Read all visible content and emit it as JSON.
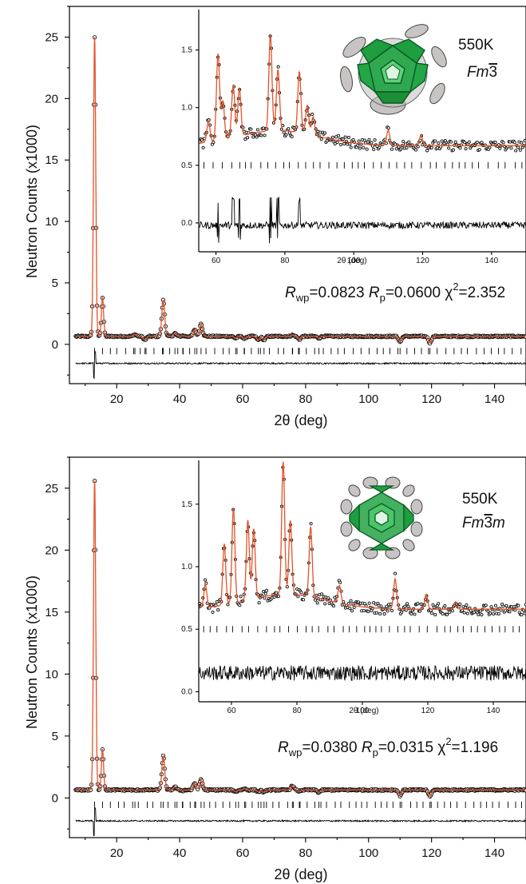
{
  "chart_data": [
    {
      "type": "line",
      "panel": "top",
      "xlabel": "2θ (deg)",
      "ylabel": "Neutron Counts (x1000)",
      "xlim": [
        5,
        150
      ],
      "ylim": [
        -3.2,
        27.5
      ],
      "xticks": [
        20,
        40,
        60,
        80,
        100,
        120,
        140
      ],
      "yticks": [
        0,
        5,
        10,
        15,
        20,
        25
      ],
      "stats": {
        "Rwp": "0.0823",
        "Rp": "0.0600",
        "chi2": "2.352"
      },
      "stats_labels": {
        "rwp_main": "R",
        "rwp_sub": "wp",
        "rwp_val": "=0.0823 ",
        "rp_main": "R",
        "rp_sub": "p",
        "rp_val": "=0.0600 ",
        "chi": "χ",
        "chi_sup": "2",
        "chi_val": "=2.352"
      },
      "peaks": [
        {
          "x": 13.0,
          "y": 25.0
        },
        {
          "x": 15.5,
          "y": 3.8
        },
        {
          "x": 25.8,
          "y": 0.8
        },
        {
          "x": 29.0,
          "y": 0.35
        },
        {
          "x": 34.8,
          "y": 3.6
        },
        {
          "x": 38.5,
          "y": 0.9
        },
        {
          "x": 41.0,
          "y": 0.7
        },
        {
          "x": 44.8,
          "y": 1.2
        },
        {
          "x": 46.8,
          "y": 1.7
        },
        {
          "x": 57.8,
          "y": 0.5
        },
        {
          "x": 60.6,
          "y": 0.45
        },
        {
          "x": 65.0,
          "y": 0.35
        },
        {
          "x": 66.8,
          "y": 0.35
        },
        {
          "x": 75.8,
          "y": 0.75
        },
        {
          "x": 78.0,
          "y": 0.4
        },
        {
          "x": 84.2,
          "y": 0.5
        },
        {
          "x": 110.0,
          "y": 0.2
        },
        {
          "x": 119.5,
          "y": 0.12
        }
      ],
      "background": 0.65,
      "bragg_y": -0.55,
      "diff_y": -1.55,
      "inset": {
        "temperature": "550K",
        "space_group": "Fm3",
        "xlabel": "2θ (deg)",
        "xlim": [
          55,
          150
        ],
        "ylim": [
          -0.25,
          1.85
        ],
        "xticks": [
          60,
          80,
          100,
          120,
          140
        ],
        "yticks": [
          0.0,
          0.5,
          1.0,
          1.5
        ],
        "ytick_labels": [
          "0.0",
          "0.5",
          "1.0",
          "1.5"
        ],
        "background_hump": {
          "center": 78,
          "height": 0.13,
          "width": 12
        },
        "background_base": 0.67,
        "peaks": [
          {
            "x": 57.8,
            "y": 0.85
          },
          {
            "x": 60.6,
            "y": 1.42
          },
          {
            "x": 62.0,
            "y": 1.0
          },
          {
            "x": 65.0,
            "y": 1.12
          },
          {
            "x": 66.8,
            "y": 1.08
          },
          {
            "x": 75.8,
            "y": 1.5
          },
          {
            "x": 78.0,
            "y": 1.2
          },
          {
            "x": 84.2,
            "y": 1.2
          },
          {
            "x": 86.5,
            "y": 0.92
          },
          {
            "x": 88.2,
            "y": 0.83
          },
          {
            "x": 110.0,
            "y": 0.8
          },
          {
            "x": 119.5,
            "y": 0.76
          }
        ],
        "bragg_y": 0.5,
        "diff_y": -0.02
      }
    },
    {
      "type": "line",
      "panel": "bottom",
      "xlabel": "2θ (deg)",
      "ylabel": "Neutron Counts (x1000)",
      "xlim": [
        5,
        150
      ],
      "ylim": [
        -3.2,
        27.5
      ],
      "xticks": [
        20,
        40,
        60,
        80,
        100,
        120,
        140
      ],
      "yticks": [
        0,
        5,
        10,
        15,
        20,
        25
      ],
      "stats": {
        "Rwp": "0.0380",
        "Rp": "0.0315",
        "chi2": "1.196"
      },
      "stats_labels": {
        "rwp_main": "R",
        "rwp_sub": "wp",
        "rwp_val": "=0.0380 ",
        "rp_main": "R",
        "rp_sub": "p",
        "rp_val": "=0.0315 ",
        "chi": "χ",
        "chi_sup": "2",
        "chi_val": "=1.196"
      },
      "peaks": [
        {
          "x": 13.0,
          "y": 25.6
        },
        {
          "x": 15.5,
          "y": 3.9
        },
        {
          "x": 25.8,
          "y": 0.6
        },
        {
          "x": 34.8,
          "y": 3.4
        },
        {
          "x": 38.5,
          "y": 0.9
        },
        {
          "x": 41.0,
          "y": 0.6
        },
        {
          "x": 44.8,
          "y": 1.2
        },
        {
          "x": 46.8,
          "y": 1.5
        },
        {
          "x": 57.8,
          "y": 0.5
        },
        {
          "x": 60.6,
          "y": 0.75
        },
        {
          "x": 65.0,
          "y": 0.5
        },
        {
          "x": 66.8,
          "y": 0.45
        },
        {
          "x": 75.8,
          "y": 1.0
        },
        {
          "x": 78.0,
          "y": 0.55
        },
        {
          "x": 84.2,
          "y": 0.45
        },
        {
          "x": 110.0,
          "y": 0.2
        },
        {
          "x": 119.5,
          "y": 0.12
        }
      ],
      "background": 0.65,
      "bragg_y": -0.55,
      "diff_y": -1.85,
      "inset": {
        "temperature": "550K",
        "space_group": "Fm3m",
        "xlabel": "2θ (deg)",
        "xlim": [
          50,
          150
        ],
        "ylim": [
          -0.08,
          1.85
        ],
        "xticks": [
          60,
          80,
          100,
          120,
          140
        ],
        "yticks": [
          0.0,
          0.5,
          1.0,
          1.5
        ],
        "ytick_labels": [
          "0.0",
          "0.5",
          "1.0",
          "1.5"
        ],
        "background_hump": {
          "center": 77,
          "height": 0.12,
          "width": 12
        },
        "background_base": 0.66,
        "peaks": [
          {
            "x": 52.0,
            "y": 0.85
          },
          {
            "x": 57.8,
            "y": 1.15
          },
          {
            "x": 60.6,
            "y": 1.42
          },
          {
            "x": 65.0,
            "y": 1.3
          },
          {
            "x": 66.8,
            "y": 1.22
          },
          {
            "x": 75.8,
            "y": 1.72
          },
          {
            "x": 78.0,
            "y": 1.25
          },
          {
            "x": 84.2,
            "y": 1.22
          },
          {
            "x": 93.0,
            "y": 0.8
          },
          {
            "x": 110.0,
            "y": 0.9
          },
          {
            "x": 119.5,
            "y": 0.78
          },
          {
            "x": 128.5,
            "y": 0.72
          }
        ],
        "bragg_y": 0.5,
        "diff_y": 0.15
      }
    }
  ],
  "colors": {
    "fit": "#e2542b",
    "observed": "#111111",
    "molecule_green": "#1e9e3e",
    "ellipsoid": "#c9c4c4"
  }
}
